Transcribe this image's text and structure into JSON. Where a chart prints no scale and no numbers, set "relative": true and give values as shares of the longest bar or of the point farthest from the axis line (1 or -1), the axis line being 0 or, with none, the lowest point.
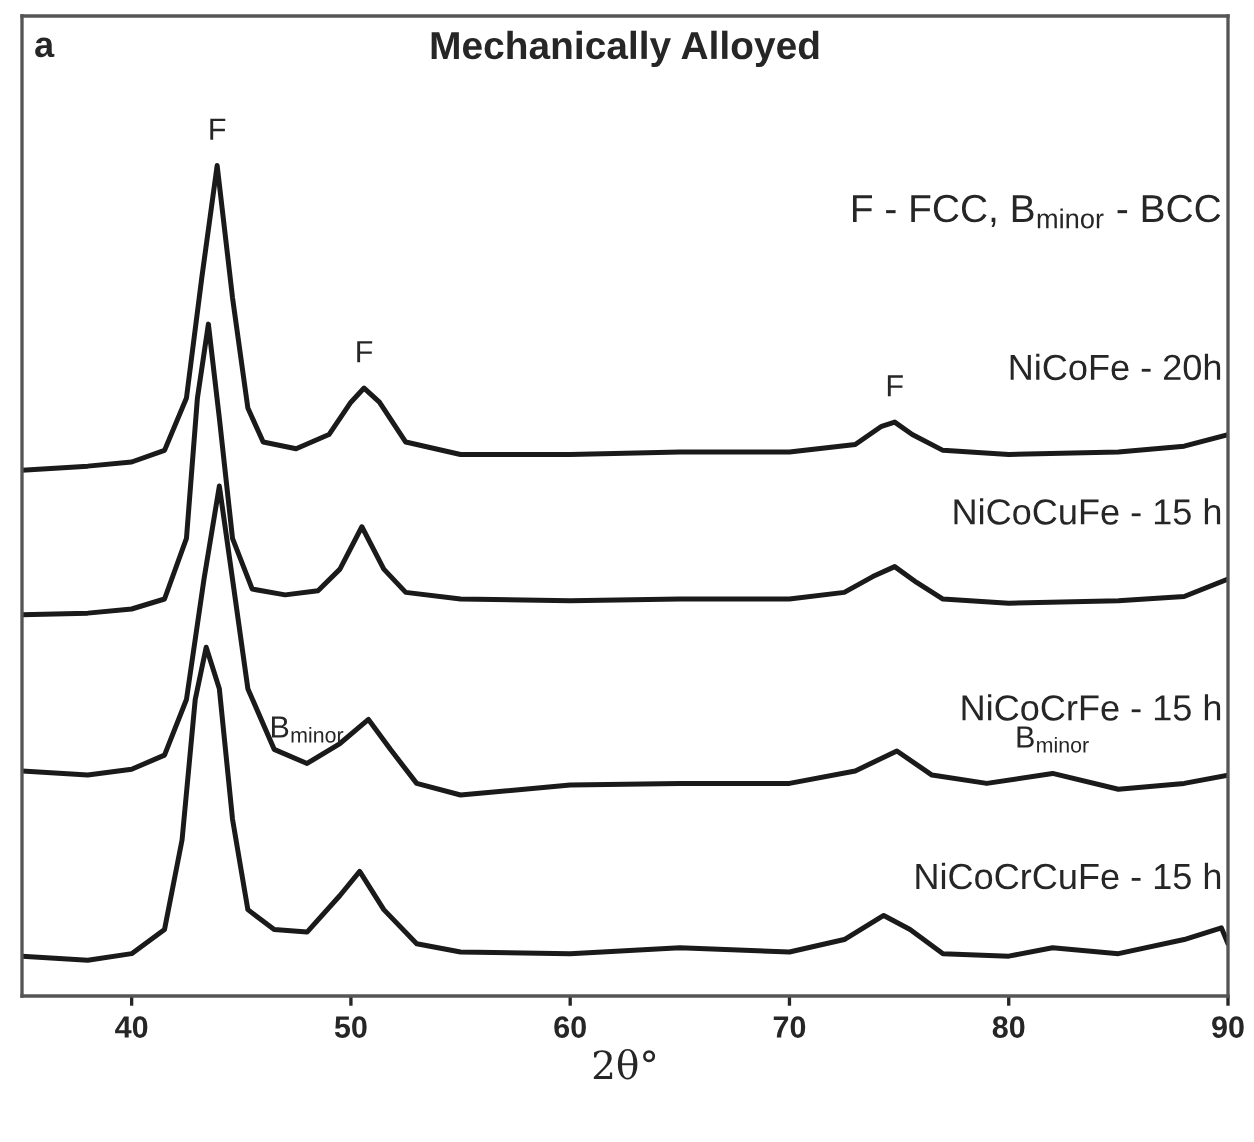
{
  "chart_data": {
    "type": "line",
    "title": "Mechanically Alloyed",
    "xlabel": "2θ°",
    "relative": true,
    "xlim": [
      35,
      90
    ],
    "xticks": [
      40,
      50,
      60,
      70,
      80,
      90
    ],
    "tick_labels": "x",
    "grid": false,
    "legend": false,
    "annotations": [
      "a",
      "F - FCC, B$_{minor}$ - BCC",
      {
        "text": "F",
        "x": 43.9,
        "y": 1.0
      },
      {
        "text": "F",
        "x": 50.6,
        "y": 0.732
      },
      {
        "text": "F",
        "x": 74.8,
        "y": 0.691
      },
      {
        "text": "B$_{minor}$",
        "x": 48,
        "y": 0.28
      },
      {
        "text": "B$_{minor}$",
        "x": 82,
        "y": 0.268
      }
    ],
    "series": [
      {
        "name": "NiCoFe - 20h",
        "color": "#1a1a1a",
        "x": [
          35,
          38,
          40,
          41.5,
          42.5,
          43.2,
          43.9,
          44.6,
          45.3,
          46,
          47.5,
          49,
          50,
          50.6,
          51.3,
          52.5,
          55,
          60,
          65,
          70,
          73,
          74.2,
          74.8,
          75.6,
          77,
          80,
          85,
          88,
          90
        ],
        "values": [
          0.633,
          0.638,
          0.643,
          0.657,
          0.72,
          0.865,
          1.0,
          0.841,
          0.708,
          0.667,
          0.659,
          0.676,
          0.715,
          0.732,
          0.715,
          0.667,
          0.652,
          0.652,
          0.655,
          0.655,
          0.664,
          0.686,
          0.691,
          0.676,
          0.657,
          0.652,
          0.655,
          0.662,
          0.676
        ]
      },
      {
        "name": "NiCoCuFe - 15 h",
        "color": "#1a1a1a",
        "x": [
          35,
          38,
          40,
          41.5,
          42.5,
          43.0,
          43.5,
          44.0,
          44.6,
          45.5,
          47,
          48.5,
          49.5,
          50.5,
          51.5,
          52.5,
          55,
          60,
          65,
          70,
          72.5,
          73.8,
          74.8,
          75.8,
          77,
          80,
          85,
          88,
          90
        ],
        "values": [
          0.459,
          0.461,
          0.466,
          0.478,
          0.551,
          0.72,
          0.809,
          0.696,
          0.551,
          0.49,
          0.483,
          0.488,
          0.514,
          0.565,
          0.514,
          0.486,
          0.478,
          0.476,
          0.478,
          0.478,
          0.486,
          0.505,
          0.517,
          0.498,
          0.478,
          0.473,
          0.476,
          0.481,
          0.502
        ]
      },
      {
        "name": "NiCoCrFe - 15 h",
        "color": "#1a1a1a",
        "x": [
          35,
          38,
          40,
          41.5,
          42.5,
          43.3,
          44.0,
          44.6,
          45.3,
          46.5,
          48,
          49.5,
          50.8,
          51.8,
          53,
          55,
          60,
          65,
          70,
          73,
          74.9,
          76.5,
          79,
          82,
          85,
          88,
          90
        ],
        "values": [
          0.271,
          0.266,
          0.273,
          0.29,
          0.357,
          0.502,
          0.614,
          0.502,
          0.37,
          0.297,
          0.28,
          0.304,
          0.333,
          0.297,
          0.256,
          0.242,
          0.254,
          0.256,
          0.256,
          0.271,
          0.295,
          0.266,
          0.256,
          0.268,
          0.249,
          0.256,
          0.266
        ]
      },
      {
        "name": "NiCoCrCuFe - 15 h",
        "color": "#1a1a1a",
        "x": [
          35,
          38,
          40,
          41.5,
          42.3,
          42.9,
          43.4,
          44.0,
          44.6,
          45.3,
          46.5,
          48,
          49.5,
          50.4,
          51.5,
          53,
          55,
          60,
          65,
          70,
          72.5,
          74.3,
          75.5,
          77,
          80,
          82,
          85,
          88,
          89.7,
          90
        ],
        "values": [
          0.048,
          0.043,
          0.051,
          0.08,
          0.188,
          0.357,
          0.42,
          0.37,
          0.213,
          0.104,
          0.08,
          0.077,
          0.121,
          0.15,
          0.104,
          0.063,
          0.053,
          0.051,
          0.058,
          0.053,
          0.068,
          0.097,
          0.08,
          0.051,
          0.048,
          0.058,
          0.051,
          0.068,
          0.082,
          0.063
        ]
      }
    ]
  }
}
